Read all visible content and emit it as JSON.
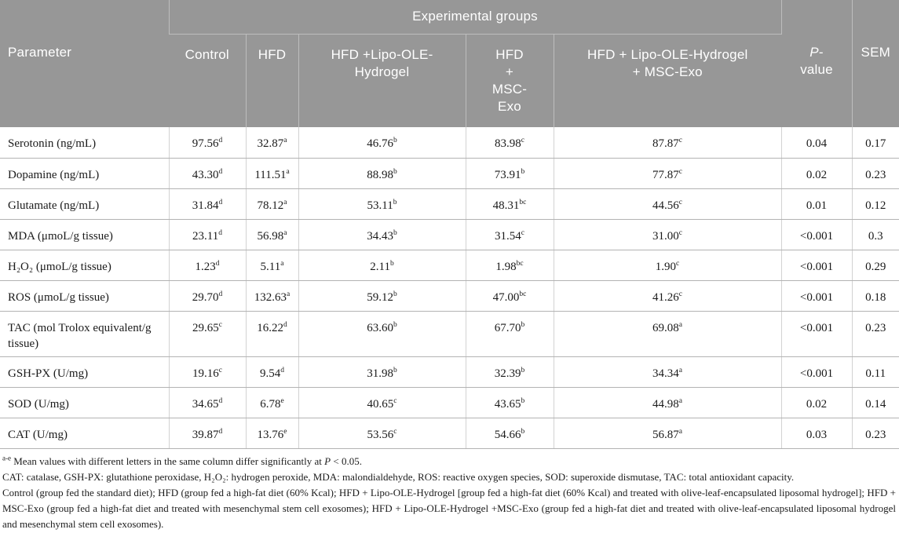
{
  "colors": {
    "header_bg": "#979797",
    "header_line": "#bdbdbd",
    "row_line": "#b3b3b3",
    "col_line": "#d2d2d2"
  },
  "table": {
    "header": {
      "parameter": "Parameter",
      "experimental_groups": "Experimental groups",
      "group_columns": [
        "Control",
        "HFD",
        "HFD +Lipo-OLE-\nHydrogel",
        "HFD\n+\nMSC-\nExo",
        "HFD + Lipo-OLE-Hydrogel\n+ MSC-Exo"
      ],
      "pvalue_italic": "P",
      "pvalue_rest": "-\nvalue",
      "sem": "SEM"
    },
    "rows": [
      {
        "parameter": "Serotonin (ng/mL)",
        "values": [
          {
            "v": "97.56",
            "s": "d"
          },
          {
            "v": "32.87",
            "s": "a"
          },
          {
            "v": "46.76",
            "s": "b"
          },
          {
            "v": "83.98",
            "s": "c"
          },
          {
            "v": "87.87",
            "s": "c"
          }
        ],
        "p": "0.04",
        "sem": "0.17"
      },
      {
        "parameter": "Dopamine (ng/mL)",
        "values": [
          {
            "v": "43.30",
            "s": "d"
          },
          {
            "v": "111.51",
            "s": "a"
          },
          {
            "v": "88.98",
            "s": "b"
          },
          {
            "v": "73.91",
            "s": "b"
          },
          {
            "v": "77.87",
            "s": "c"
          }
        ],
        "p": "0.02",
        "sem": "0.23"
      },
      {
        "parameter": "Glutamate (ng/mL)",
        "values": [
          {
            "v": "31.84",
            "s": "d"
          },
          {
            "v": "78.12",
            "s": "a"
          },
          {
            "v": "53.11",
            "s": "b"
          },
          {
            "v": "48.31",
            "s": "bc"
          },
          {
            "v": "44.56",
            "s": "c"
          }
        ],
        "p": "0.01",
        "sem": "0.12"
      },
      {
        "parameter": "MDA (μmoL/g tissue)",
        "values": [
          {
            "v": "23.11",
            "s": "d"
          },
          {
            "v": "56.98",
            "s": "a"
          },
          {
            "v": "34.43",
            "s": "b"
          },
          {
            "v": "31.54",
            "s": "c"
          },
          {
            "v": "31.00",
            "s": "c"
          }
        ],
        "p": "<0.001",
        "sem": "0.3"
      },
      {
        "parameter": "H₂O₂ (μmoL/g tissue)",
        "values": [
          {
            "v": "1.23",
            "s": "d"
          },
          {
            "v": "5.11",
            "s": "a"
          },
          {
            "v": "2.11",
            "s": "b"
          },
          {
            "v": "1.98",
            "s": "bc"
          },
          {
            "v": "1.90",
            "s": "c"
          }
        ],
        "p": "<0.001",
        "sem": "0.29"
      },
      {
        "parameter": "ROS (μmoL/g tissue)",
        "values": [
          {
            "v": "29.70",
            "s": "d"
          },
          {
            "v": "132.63",
            "s": "a"
          },
          {
            "v": "59.12",
            "s": "b"
          },
          {
            "v": "47.00",
            "s": "bc"
          },
          {
            "v": "41.26",
            "s": "c"
          }
        ],
        "p": "<0.001",
        "sem": "0.18"
      },
      {
        "parameter": "TAC (mol Trolox equivalent/g tissue)",
        "values": [
          {
            "v": "29.65",
            "s": "c"
          },
          {
            "v": "16.22",
            "s": "d"
          },
          {
            "v": "63.60",
            "s": "b"
          },
          {
            "v": "67.70",
            "s": "b"
          },
          {
            "v": "69.08",
            "s": "a"
          }
        ],
        "p": "<0.001",
        "sem": "0.23"
      },
      {
        "parameter": "GSH-PX (U/mg)",
        "values": [
          {
            "v": "19.16",
            "s": "c"
          },
          {
            "v": "9.54",
            "s": "d"
          },
          {
            "v": "31.98",
            "s": "b"
          },
          {
            "v": "32.39",
            "s": "b"
          },
          {
            "v": "34.34",
            "s": "a"
          }
        ],
        "p": "<0.001",
        "sem": "0.11"
      },
      {
        "parameter": "SOD (U/mg)",
        "values": [
          {
            "v": "34.65",
            "s": "d"
          },
          {
            "v": "6.78",
            "s": "e"
          },
          {
            "v": "40.65",
            "s": "c"
          },
          {
            "v": "43.65",
            "s": "b"
          },
          {
            "v": "44.98",
            "s": "a"
          }
        ],
        "p": "0.02",
        "sem": "0.14"
      },
      {
        "parameter": "CAT (U/mg)",
        "values": [
          {
            "v": "39.87",
            "s": "d"
          },
          {
            "v": "13.76",
            "s": "e"
          },
          {
            "v": "53.56",
            "s": "c"
          },
          {
            "v": "54.66",
            "s": "b"
          },
          {
            "v": "56.87",
            "s": "a"
          }
        ],
        "p": "0.03",
        "sem": "0.23"
      }
    ]
  },
  "footnotes": {
    "fn1_sup": "a-e",
    "fn1_text": "Mean values with different letters in the same column differ significantly at",
    "fn1_p": "P",
    "fn1_tail": "< 0.05.",
    "fn2": "CAT: catalase, GSH-PX: glutathione peroxidase, H₂O₂: hydrogen peroxide, MDA: malondialdehyde, ROS: reactive oxygen species, SOD: superoxide dismutase, TAC: total antioxidant capacity.",
    "fn3": "Control (group fed the standard diet); HFD (group fed a high-fat diet (60% Kcal); HFD + Lipo-OLE-Hydrogel [group fed a high-fat diet (60% Kcal) and treated with olive-leaf-encapsulated liposomal hydrogel]; HFD + MSC-Exo (group fed a high-fat diet and treated with mesenchymal stem cell exosomes); HFD + Lipo-OLE-Hydrogel +MSC-Exo (group fed a high-fat diet and treated with olive-leaf-encapsulated liposomal hydrogel and mesenchymal stem cell exosomes)."
  }
}
